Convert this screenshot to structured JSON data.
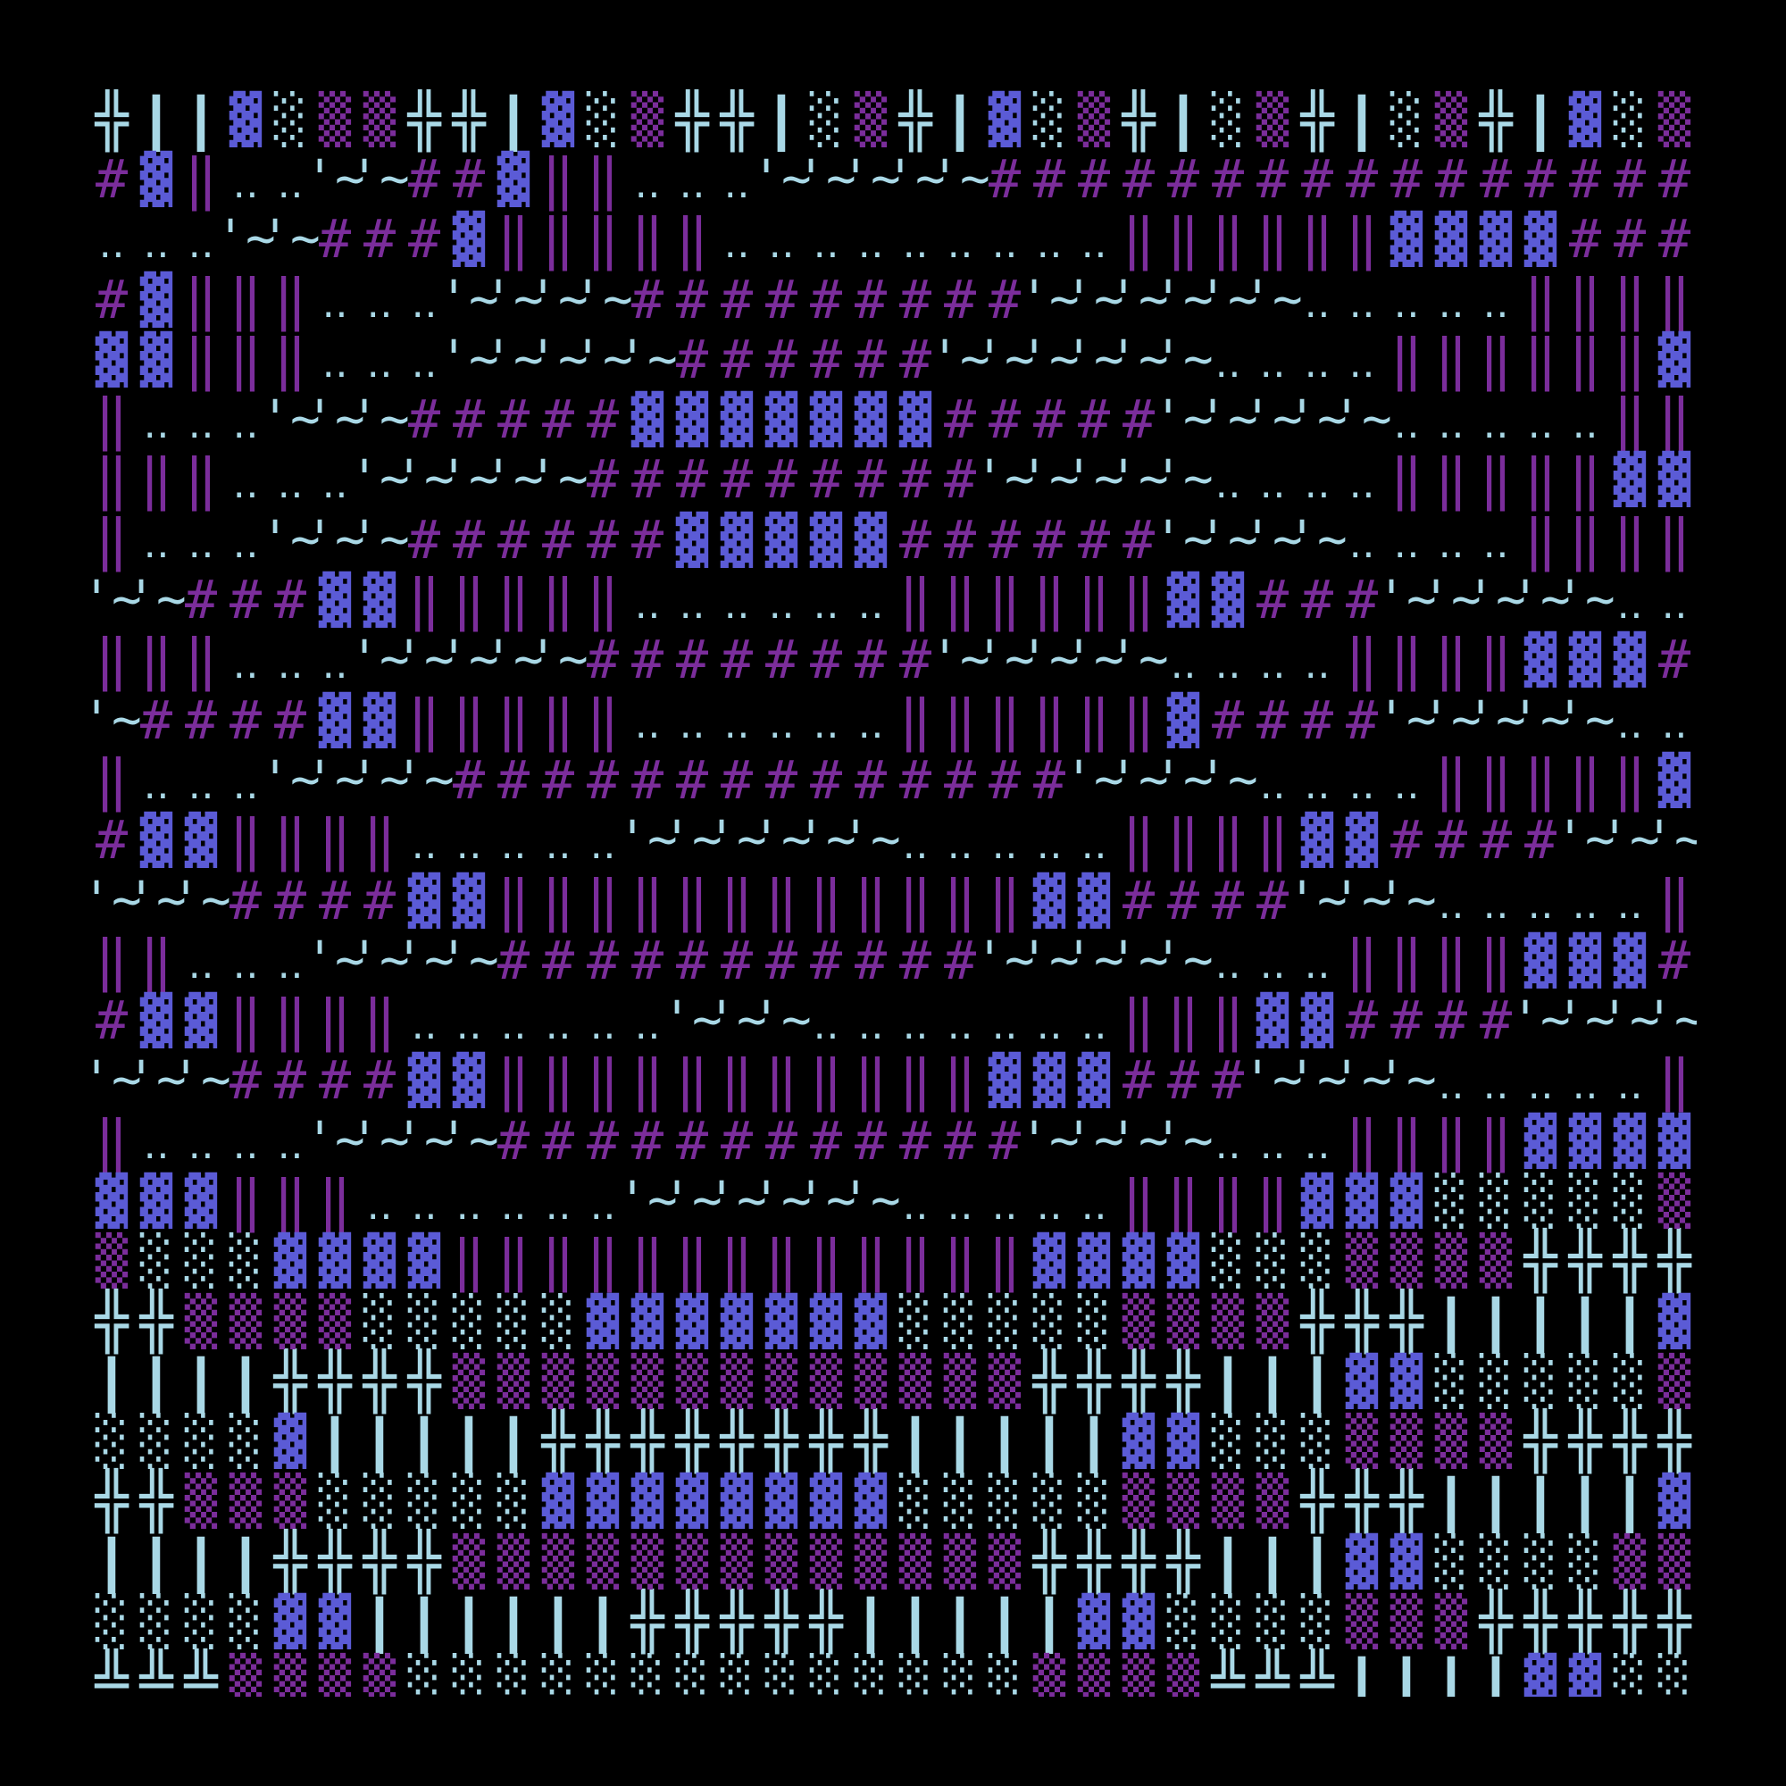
{
  "colors": {
    "background": "#000000",
    "light_blue": "#a9d8e6",
    "blue": "#5b5bd6",
    "purple": "#7b2d9b"
  },
  "art": {
    "rows": [
      "╬||▓░▒▒╬╬|▓░▒╬╬|░▒╬|▓░▒╬|░▒╬|░▒╬|▓░▒",
      "#▓‖‥‥~~##▓‖‖‥‥‥~~~~~################",
      "‥‥‥~~###▓‖‖‖‖‖‥‥‥‥‥‥‥‥‥‖‖‖‖‖‖▓▓▓▓###",
      "#▓‖‖‖‥‥‥~~~~#########~~~~~~‥‥‥‥‥‖‖‖‖",
      "▓▓‖‖‖‥‥‥~~~~~######~~~~~~‥‥‥‥‖‖‖‖‖‖▓",
      "‖‥‥‥~~~#####▓▓▓▓▓▓▓#####~~~~~‥‥‥‥‥‖‖",
      "‖‖‖‥‥‥~~~~~#########~~~~~‥‥‥‥‖‖‖‖‖▓▓",
      "‖‥‥‥~~~######▓▓▓▓▓######~~~~‥‥‥‥‖‖‖‖",
      "~~###▓▓‖‖‖‖‖‥‥‥‥‥‥‖‖‖‖‖‖▓▓###~~~~~‥‥",
      "‖‖‖‥‥‥~~~~~########~~~~~‥‥‥‥‖‖‖‖▓▓▓#",
      "~####▓▓‖‖‖‖‖‥‥‥‥‥‥‖‖‖‖‖‖▓####~~~~~‥‥",
      "‖‥‥‥~~~~##############~~~~‥‥‥‥‖‖‖‖‖▓",
      "#▓▓‖‖‖‖‥‥‥‥‥~~~~~~‥‥‥‥‥‖‖‖‖▓▓####~~~",
      "~~~####▓▓‖‖‖‖‖‖‖‖‖‖‖‖▓▓####~~~‥‥‥‥‥‖",
      "‖‖‥‥‥~~~~###########~~~~~‥‥‥‖‖‖‖▓▓▓#",
      "#▓▓‖‖‖‖‥‥‥‥‥‥~~~‥‥‥‥‥‥‥‖‖‖▓▓####~~~~",
      "~~~####▓▓‖‖‖‖‖‖‖‖‖‖‖▓▓▓###~~~~‥‥‥‥‥‖",
      "‖‥‥‥‥~~~~############~~~~‥‥‥‖‖‖‖▓▓▓▓",
      "▓▓▓‖‖‖‥‥‥‥‥‥~~~~~~‥‥‥‥‥‖‖‖‖▓▓▓░░░░░▒",
      "▒░░░▓▓▓▓‖‖‖‖‖‖‖‖‖‖‖‖‖▓▓▓▓░░░▒▒▒▒╬╬╬╬",
      "╬╬▒▒▒▒░░░░░▓▓▓▓▓▓▓░░░░░▒▒▒▒╬╬╬|||||▓",
      "||||╬╬╬╬▒▒▒▒▒▒▒▒▒▒▒▒▒╬╬╬╬|||▓▓░░░░░▒",
      "░░░░▓|||||╬╬╬╬╬╬╬╬|||||▓▓░░░▒▒▒▒╬╬╬╬",
      "╬╬▒▒▒░░░░░▓▓▓▓▓▓▓▓░░░░░▒▒▒▒╬╬╬|||||▓",
      "||||╬╬╬╬▒▒▒▒▒▒▒▒▒▒▒▒▒╬╬╬╬|||▓▓░░░░▒▒",
      "░░░░▓▓||||||╬╬╬╬╬|||||▓▓░░░░▒▒▒╬╬╬╬╬",
      "╩╩╩▒▒▒▒░░░░░░░░░░░░░░▒▒▒▒╩╩╩||||▓▓░░"
    ]
  }
}
